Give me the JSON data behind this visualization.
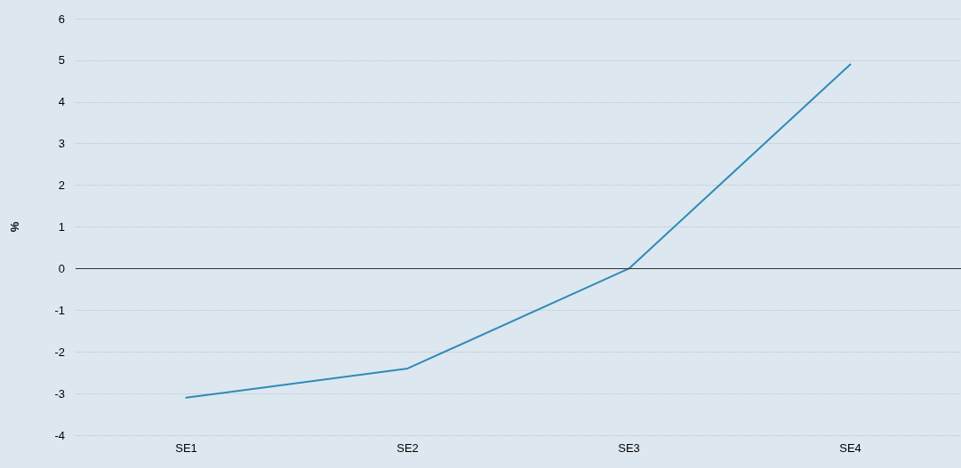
{
  "chart_data": {
    "type": "line",
    "ylabel": "%",
    "categories": [
      "SE1",
      "SE2",
      "SE3",
      "SE4"
    ],
    "series": [
      {
        "color": "#2f8ab8",
        "values": [
          -3.1,
          -2.4,
          0.0,
          4.9
        ]
      }
    ],
    "ylim": [
      -4,
      6
    ],
    "yticks": [
      -4,
      -3,
      -2,
      -1,
      0,
      1,
      2,
      3,
      4,
      5,
      6
    ],
    "grid": "y",
    "marker": "none",
    "line_style": "solid",
    "ref_lines": [
      {
        "axis": "y",
        "value": 0,
        "color": "#333333",
        "line_style": "solid"
      }
    ]
  }
}
